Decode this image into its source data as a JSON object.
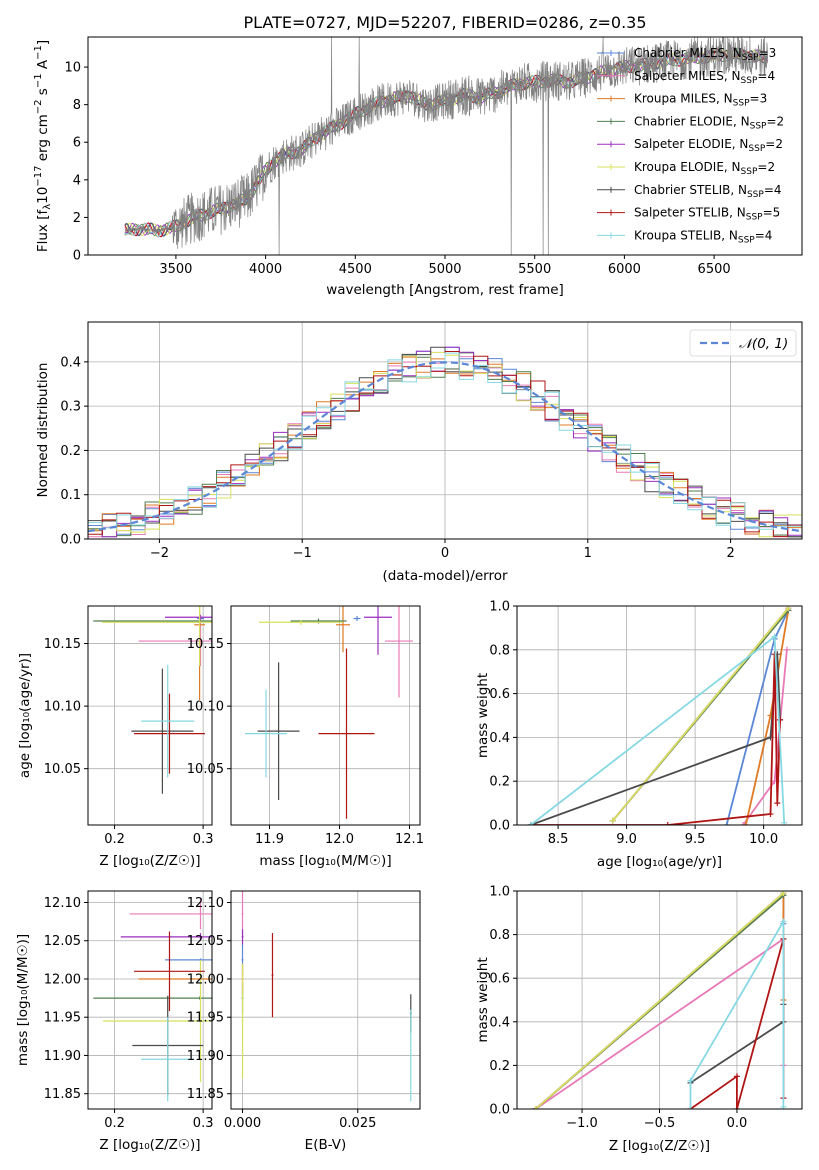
{
  "figure": {
    "title": "PLATE=0727, MJD=52207, FIBERID=0286, z=0.35"
  },
  "colors": {
    "Chabrier MILES": "#5b87d6",
    "Salpeter MILES": "#e87ab8",
    "Kroupa MILES": "#e07a24",
    "Chabrier ELODIE": "#4f7f4f",
    "Salpeter ELODIE": "#9a2ec0",
    "Kroupa ELODIE": "#d7e05a",
    "Chabrier STELIB": "#4a4a4a",
    "Salpeter STELIB": "#b01515",
    "Kroupa STELIB": "#86d8e2",
    "data": "#808080",
    "gauss": "#5b87d6"
  },
  "chart_data": [
    {
      "id": "spectrum",
      "type": "line",
      "title": "PLATE=0727, MJD=52207, FIBERID=0286, z=0.35",
      "xlabel": "wavelength [Angstrom, rest frame]",
      "ylabel": "Flux [f_λ 10^-17 erg cm^-2 s^-1 A^-1]",
      "xlim": [
        3010,
        6990
      ],
      "ylim": [
        0,
        11.6
      ],
      "xticks": [
        "3500",
        "4000",
        "4500",
        "5000",
        "5500",
        "6000",
        "6500"
      ],
      "yticks": [
        "0",
        "2",
        "4",
        "6",
        "8",
        "10"
      ],
      "grid": false,
      "legend_position": "top-right",
      "series": [
        {
          "name": "Chabrier MILES, N_SSP=3",
          "legend_label": "Chabrier MILES, N",
          "legend_sub": "SSP",
          "legend_tail": "=3"
        },
        {
          "name": "Salpeter MILES, N_SSP=4",
          "legend_label": "Salpeter MILES, N",
          "legend_sub": "SSP",
          "legend_tail": "=4"
        },
        {
          "name": "Kroupa MILES, N_SSP=3",
          "legend_label": "Kroupa MILES, N",
          "legend_sub": "SSP",
          "legend_tail": "=3"
        },
        {
          "name": "Chabrier ELODIE, N_SSP=2",
          "legend_label": "Chabrier ELODIE, N",
          "legend_sub": "SSP",
          "legend_tail": "=2"
        },
        {
          "name": "Salpeter ELODIE, N_SSP=2",
          "legend_label": "Salpeter ELODIE, N",
          "legend_sub": "SSP",
          "legend_tail": "=2"
        },
        {
          "name": "Kroupa ELODIE, N_SSP=2",
          "legend_label": "Kroupa ELODIE, N",
          "legend_sub": "SSP",
          "legend_tail": "=2"
        },
        {
          "name": "Chabrier STELIB, N_SSP=4",
          "legend_label": "Chabrier STELIB, N",
          "legend_sub": "SSP",
          "legend_tail": "=4"
        },
        {
          "name": "Salpeter STELIB, N_SSP=5",
          "legend_label": "Salpeter STELIB, N",
          "legend_sub": "SSP",
          "legend_tail": "=5"
        },
        {
          "name": "Kroupa STELIB, N_SSP=4",
          "legend_label": "Kroupa STELIB, N",
          "legend_sub": "SSP",
          "legend_tail": "=4"
        }
      ],
      "continuum": {
        "x": [
          3215,
          3300,
          3400,
          3500,
          3600,
          3700,
          3800,
          3900,
          4000,
          4050,
          4100,
          4200,
          4300,
          4400,
          4500,
          4600,
          4700,
          4800,
          4900,
          5000,
          5100,
          5200,
          5300,
          5400,
          5500,
          5600,
          5700,
          5800,
          5900,
          6000,
          6100,
          6200,
          6300,
          6400,
          6500,
          6600,
          6700,
          6800
        ],
        "y": [
          1.3,
          1.4,
          1.3,
          1.5,
          2.0,
          2.3,
          2.6,
          3.0,
          4.5,
          5.0,
          5.3,
          5.6,
          6.4,
          6.9,
          7.5,
          8.0,
          8.3,
          8.5,
          8.0,
          8.2,
          8.5,
          8.4,
          8.7,
          9.1,
          9.2,
          9.3,
          9.2,
          9.5,
          9.8,
          10.0,
          10.1,
          10.3,
          10.4,
          10.5,
          10.6,
          10.7,
          10.6,
          10.5
        ]
      }
    },
    {
      "id": "residuals",
      "type": "line",
      "xlabel": "(data-model)/error",
      "ylabel": "Normed distribution",
      "xlim": [
        -2.5,
        2.5
      ],
      "ylim": [
        0,
        0.49
      ],
      "xticks": [
        "−2",
        "−1",
        "0",
        "1",
        "2"
      ],
      "yticks": [
        "0.0",
        "0.1",
        "0.2",
        "0.3",
        "0.4"
      ],
      "grid": true,
      "legend_position": "top-right",
      "gauss_label": "𝒩(0, 1)",
      "bin_width": 0.1
    },
    {
      "id": "age-vs-Z",
      "type": "scatter",
      "xlabel": "Z [log₁₀(Z/Z☉)]",
      "ylabel": "age  [log₁₀(age/yr)]",
      "xlim": [
        0.17,
        0.31
      ],
      "ylim": [
        10.005,
        10.18
      ],
      "xticks": [
        "0.2",
        "0.3"
      ],
      "yticks": [
        "10.05",
        "10.10",
        "10.15"
      ],
      "grid": true,
      "points": [
        {
          "x": 0.297,
          "xerr": 0.004,
          "y": 10.17,
          "yerr": 0.002,
          "c": "Chabrier MILES"
        },
        {
          "x": 0.297,
          "xerr": 0.07,
          "y": 10.152,
          "yerr": 0.02,
          "c": "Salpeter MILES"
        },
        {
          "x": 0.296,
          "xerr": 0.006,
          "y": 10.165,
          "yerr": 0.06,
          "c": "Kroupa MILES"
        },
        {
          "x": 0.296,
          "xerr": 0.12,
          "y": 10.168,
          "yerr": 0.005,
          "c": "Chabrier ELODIE"
        },
        {
          "x": 0.297,
          "xerr": 0.04,
          "y": 10.171,
          "yerr": 0.002,
          "c": "Salpeter ELODIE"
        },
        {
          "x": 0.296,
          "xerr": 0.11,
          "y": 10.167,
          "yerr": 0.035,
          "c": "Kroupa ELODIE"
        },
        {
          "x": 0.254,
          "xerr": 0.035,
          "y": 10.08,
          "yerr": 0.05,
          "c": "Chabrier STELIB"
        },
        {
          "x": 0.262,
          "xerr": 0.04,
          "y": 10.078,
          "yerr": 0.032,
          "c": "Salpeter STELIB"
        },
        {
          "x": 0.26,
          "xerr": 0.03,
          "y": 10.088,
          "yerr": 0.045,
          "c": "Kroupa STELIB"
        }
      ]
    },
    {
      "id": "age-vs-mass",
      "type": "scatter",
      "xlabel": "mass [log₁₀(M/M☉)]",
      "ylabel": "",
      "xlim": [
        11.845,
        12.115
      ],
      "ylim": [
        10.005,
        10.18
      ],
      "xticks": [
        "11.9",
        "12.0",
        "12.1"
      ],
      "yticks": [
        "10.05",
        "10.10",
        "10.15"
      ],
      "grid": true,
      "points": [
        {
          "x": 12.025,
          "xerr": 0.005,
          "y": 10.17,
          "yerr": 0.002,
          "c": "Chabrier MILES"
        },
        {
          "x": 12.085,
          "xerr": 0.02,
          "y": 10.152,
          "yerr": 0.045,
          "c": "Salpeter MILES"
        },
        {
          "x": 12.005,
          "xerr": 0.01,
          "y": 10.165,
          "yerr": 0.022,
          "c": "Kroupa MILES"
        },
        {
          "x": 11.97,
          "xerr": 0.04,
          "y": 10.168,
          "yerr": 0.002,
          "c": "Chabrier ELODIE"
        },
        {
          "x": 12.055,
          "xerr": 0.02,
          "y": 10.171,
          "yerr": 0.03,
          "c": "Salpeter ELODIE"
        },
        {
          "x": 11.945,
          "xerr": 0.06,
          "y": 10.167,
          "yerr": 0.002,
          "c": "Kroupa ELODIE"
        },
        {
          "x": 11.913,
          "xerr": 0.03,
          "y": 10.08,
          "yerr": 0.055,
          "c": "Chabrier STELIB"
        },
        {
          "x": 12.01,
          "xerr": 0.04,
          "y": 10.078,
          "yerr": 0.068,
          "c": "Salpeter STELIB"
        },
        {
          "x": 11.895,
          "xerr": 0.03,
          "y": 10.078,
          "yerr": 0.035,
          "c": "Kroupa STELIB"
        }
      ]
    },
    {
      "id": "massweight-vs-age",
      "type": "line",
      "xlabel": "age  [log₁₀(age/yr)]",
      "ylabel": "mass weight",
      "xlim": [
        8.2,
        10.28
      ],
      "ylim": [
        0,
        1.0
      ],
      "xticks": [
        "8.5",
        "9.0",
        "9.5",
        "10.0"
      ],
      "yticks": [
        "0.0",
        "0.2",
        "0.4",
        "0.6",
        "0.8",
        "1.0"
      ],
      "grid": true,
      "series": [
        {
          "c": "Chabrier MILES",
          "x": [
            9.73,
            10.08,
            10.18
          ],
          "y": [
            0.0,
            0.85,
            0.98
          ]
        },
        {
          "c": "Salpeter MILES",
          "x": [
            9.85,
            10.08,
            10.17
          ],
          "y": [
            0.0,
            0.2,
            0.8
          ]
        },
        {
          "c": "Kroupa MILES",
          "x": [
            9.87,
            10.05,
            10.18
          ],
          "y": [
            0.0,
            0.5,
            0.98
          ]
        },
        {
          "c": "Chabrier ELODIE",
          "x": [
            8.9,
            10.18
          ],
          "y": [
            0.02,
            0.98
          ]
        },
        {
          "c": "Salpeter ELODIE",
          "x": [
            8.9,
            10.18
          ],
          "y": [
            0.02,
            0.99
          ]
        },
        {
          "c": "Kroupa ELODIE",
          "x": [
            8.9,
            10.18
          ],
          "y": [
            0.02,
            0.99
          ]
        },
        {
          "c": "Chabrier STELIB",
          "x": [
            8.3,
            10.05,
            10.1,
            10.12
          ],
          "y": [
            0.0,
            0.4,
            0.78,
            0.48
          ]
        },
        {
          "c": "Salpeter STELIB",
          "x": [
            8.3,
            9.3,
            10.05,
            10.08,
            10.1,
            10.12
          ],
          "y": [
            0.0,
            0.0,
            0.05,
            0.78,
            0.1,
            0.48
          ]
        },
        {
          "c": "Kroupa STELIB",
          "x": [
            8.3,
            10.08,
            10.15
          ],
          "y": [
            0.0,
            0.86,
            0.01
          ]
        }
      ]
    },
    {
      "id": "mass-vs-Z",
      "type": "scatter",
      "xlabel": "Z [log₁₀(Z/Z☉)]",
      "ylabel": "mass [log₁₀(M/M☉)]",
      "xlim": [
        0.17,
        0.31
      ],
      "ylim": [
        11.83,
        12.115
      ],
      "xticks": [
        "0.2",
        "0.3"
      ],
      "yticks": [
        "11.85",
        "11.90",
        "11.95",
        "12.00",
        "12.05",
        "12.10"
      ],
      "grid": true,
      "points": [
        {
          "x": 0.297,
          "xerr": 0.04,
          "y": 12.025,
          "yerr": 0.002,
          "c": "Chabrier MILES"
        },
        {
          "x": 0.297,
          "xerr": 0.08,
          "y": 12.085,
          "yerr": 0.02,
          "c": "Salpeter MILES"
        },
        {
          "x": 0.297,
          "xerr": 0.07,
          "y": 12.0,
          "yerr": 0.002,
          "c": "Kroupa MILES"
        },
        {
          "x": 0.296,
          "xerr": 0.12,
          "y": 11.975,
          "yerr": 0.002,
          "c": "Chabrier ELODIE"
        },
        {
          "x": 0.297,
          "xerr": 0.09,
          "y": 12.055,
          "yerr": 0.005,
          "c": "Salpeter ELODIE"
        },
        {
          "x": 0.297,
          "xerr": 0.11,
          "y": 11.945,
          "yerr": 0.08,
          "c": "Kroupa ELODIE"
        },
        {
          "x": 0.26,
          "xerr": 0.04,
          "y": 11.913,
          "yerr": 0.065,
          "c": "Chabrier STELIB"
        },
        {
          "x": 0.262,
          "xerr": 0.04,
          "y": 12.01,
          "yerr": 0.052,
          "c": "Salpeter STELIB"
        },
        {
          "x": 0.26,
          "xerr": 0.03,
          "y": 11.895,
          "yerr": 0.055,
          "c": "Kroupa STELIB"
        }
      ]
    },
    {
      "id": "mass-vs-ebv",
      "type": "scatter",
      "xlabel": "E(B-V)",
      "ylabel": "",
      "xlim": [
        -0.0025,
        0.0385
      ],
      "ylim": [
        11.83,
        12.115
      ],
      "xticks": [
        "0.000",
        "0.025"
      ],
      "yticks": [
        "11.85",
        "11.90",
        "11.95",
        "12.00",
        "12.05",
        "12.10"
      ],
      "grid": true,
      "points": [
        {
          "x": 0.0,
          "xerr": 0.0002,
          "y": 12.025,
          "yerr": 0.02,
          "c": "Chabrier MILES"
        },
        {
          "x": 0.0,
          "xerr": 0.0002,
          "y": 12.085,
          "yerr": 0.03,
          "c": "Salpeter MILES"
        },
        {
          "x": 0.0,
          "xerr": 0.0002,
          "y": 12.0,
          "yerr": 0.02,
          "c": "Kroupa MILES"
        },
        {
          "x": 0.0,
          "xerr": 0.0002,
          "y": 11.975,
          "yerr": 0.02,
          "c": "Chabrier ELODIE"
        },
        {
          "x": 0.0,
          "xerr": 0.0002,
          "y": 12.055,
          "yerr": 0.01,
          "c": "Salpeter ELODIE"
        },
        {
          "x": 0.0,
          "xerr": 0.0002,
          "y": 11.945,
          "yerr": 0.075,
          "c": "Kroupa ELODIE"
        },
        {
          "x": 0.0365,
          "xerr": 0.0002,
          "y": 11.955,
          "yerr": 0.025,
          "c": "Chabrier STELIB"
        },
        {
          "x": 0.0065,
          "xerr": 0.0002,
          "y": 12.005,
          "yerr": 0.055,
          "c": "Salpeter STELIB"
        },
        {
          "x": 0.0365,
          "xerr": 0.0002,
          "y": 11.9,
          "yerr": 0.06,
          "c": "Kroupa STELIB"
        }
      ]
    },
    {
      "id": "massweight-vs-Z",
      "type": "line",
      "xlabel": "Z [log₁₀(Z/Z☉)]",
      "ylabel": "mass weight",
      "xlim": [
        -1.42,
        0.42
      ],
      "ylim": [
        0,
        1.0
      ],
      "xticks": [
        "−1.0",
        "−0.5",
        "0.0"
      ],
      "yticks": [
        "0.0",
        "0.2",
        "0.4",
        "0.6",
        "0.8",
        "1.0"
      ],
      "grid": true,
      "series": [
        {
          "c": "Chabrier MILES",
          "x": [
            -1.3,
            0.3,
            0.3
          ],
          "y": [
            0.0,
            0.98,
            0.85
          ]
        },
        {
          "c": "Salpeter MILES",
          "x": [
            -1.3,
            0.3,
            0.3
          ],
          "y": [
            0.0,
            0.78,
            0.2
          ]
        },
        {
          "c": "Kroupa MILES",
          "x": [
            -1.3,
            0.3,
            0.3
          ],
          "y": [
            0.0,
            0.98,
            0.5
          ]
        },
        {
          "c": "Chabrier ELODIE",
          "x": [
            -1.3,
            0.3
          ],
          "y": [
            0.0,
            0.98
          ]
        },
        {
          "c": "Salpeter ELODIE",
          "x": [
            -1.3,
            0.3
          ],
          "y": [
            0.0,
            0.99
          ]
        },
        {
          "c": "Kroupa ELODIE",
          "x": [
            -1.3,
            0.3
          ],
          "y": [
            0.0,
            0.99
          ]
        },
        {
          "c": "Chabrier STELIB",
          "x": [
            -0.3,
            0.3,
            0.3,
            0.3
          ],
          "y": [
            0.12,
            0.4,
            0.78,
            0.48
          ]
        },
        {
          "c": "Salpeter STELIB",
          "x": [
            -0.3,
            0.0,
            0.0,
            0.3,
            0.3
          ],
          "y": [
            0.0,
            0.15,
            0.0,
            0.78,
            0.05
          ]
        },
        {
          "c": "Kroupa STELIB",
          "x": [
            -0.3,
            -0.3,
            0.3,
            0.3
          ],
          "y": [
            0.0,
            0.13,
            0.86,
            0.01
          ]
        }
      ]
    }
  ]
}
